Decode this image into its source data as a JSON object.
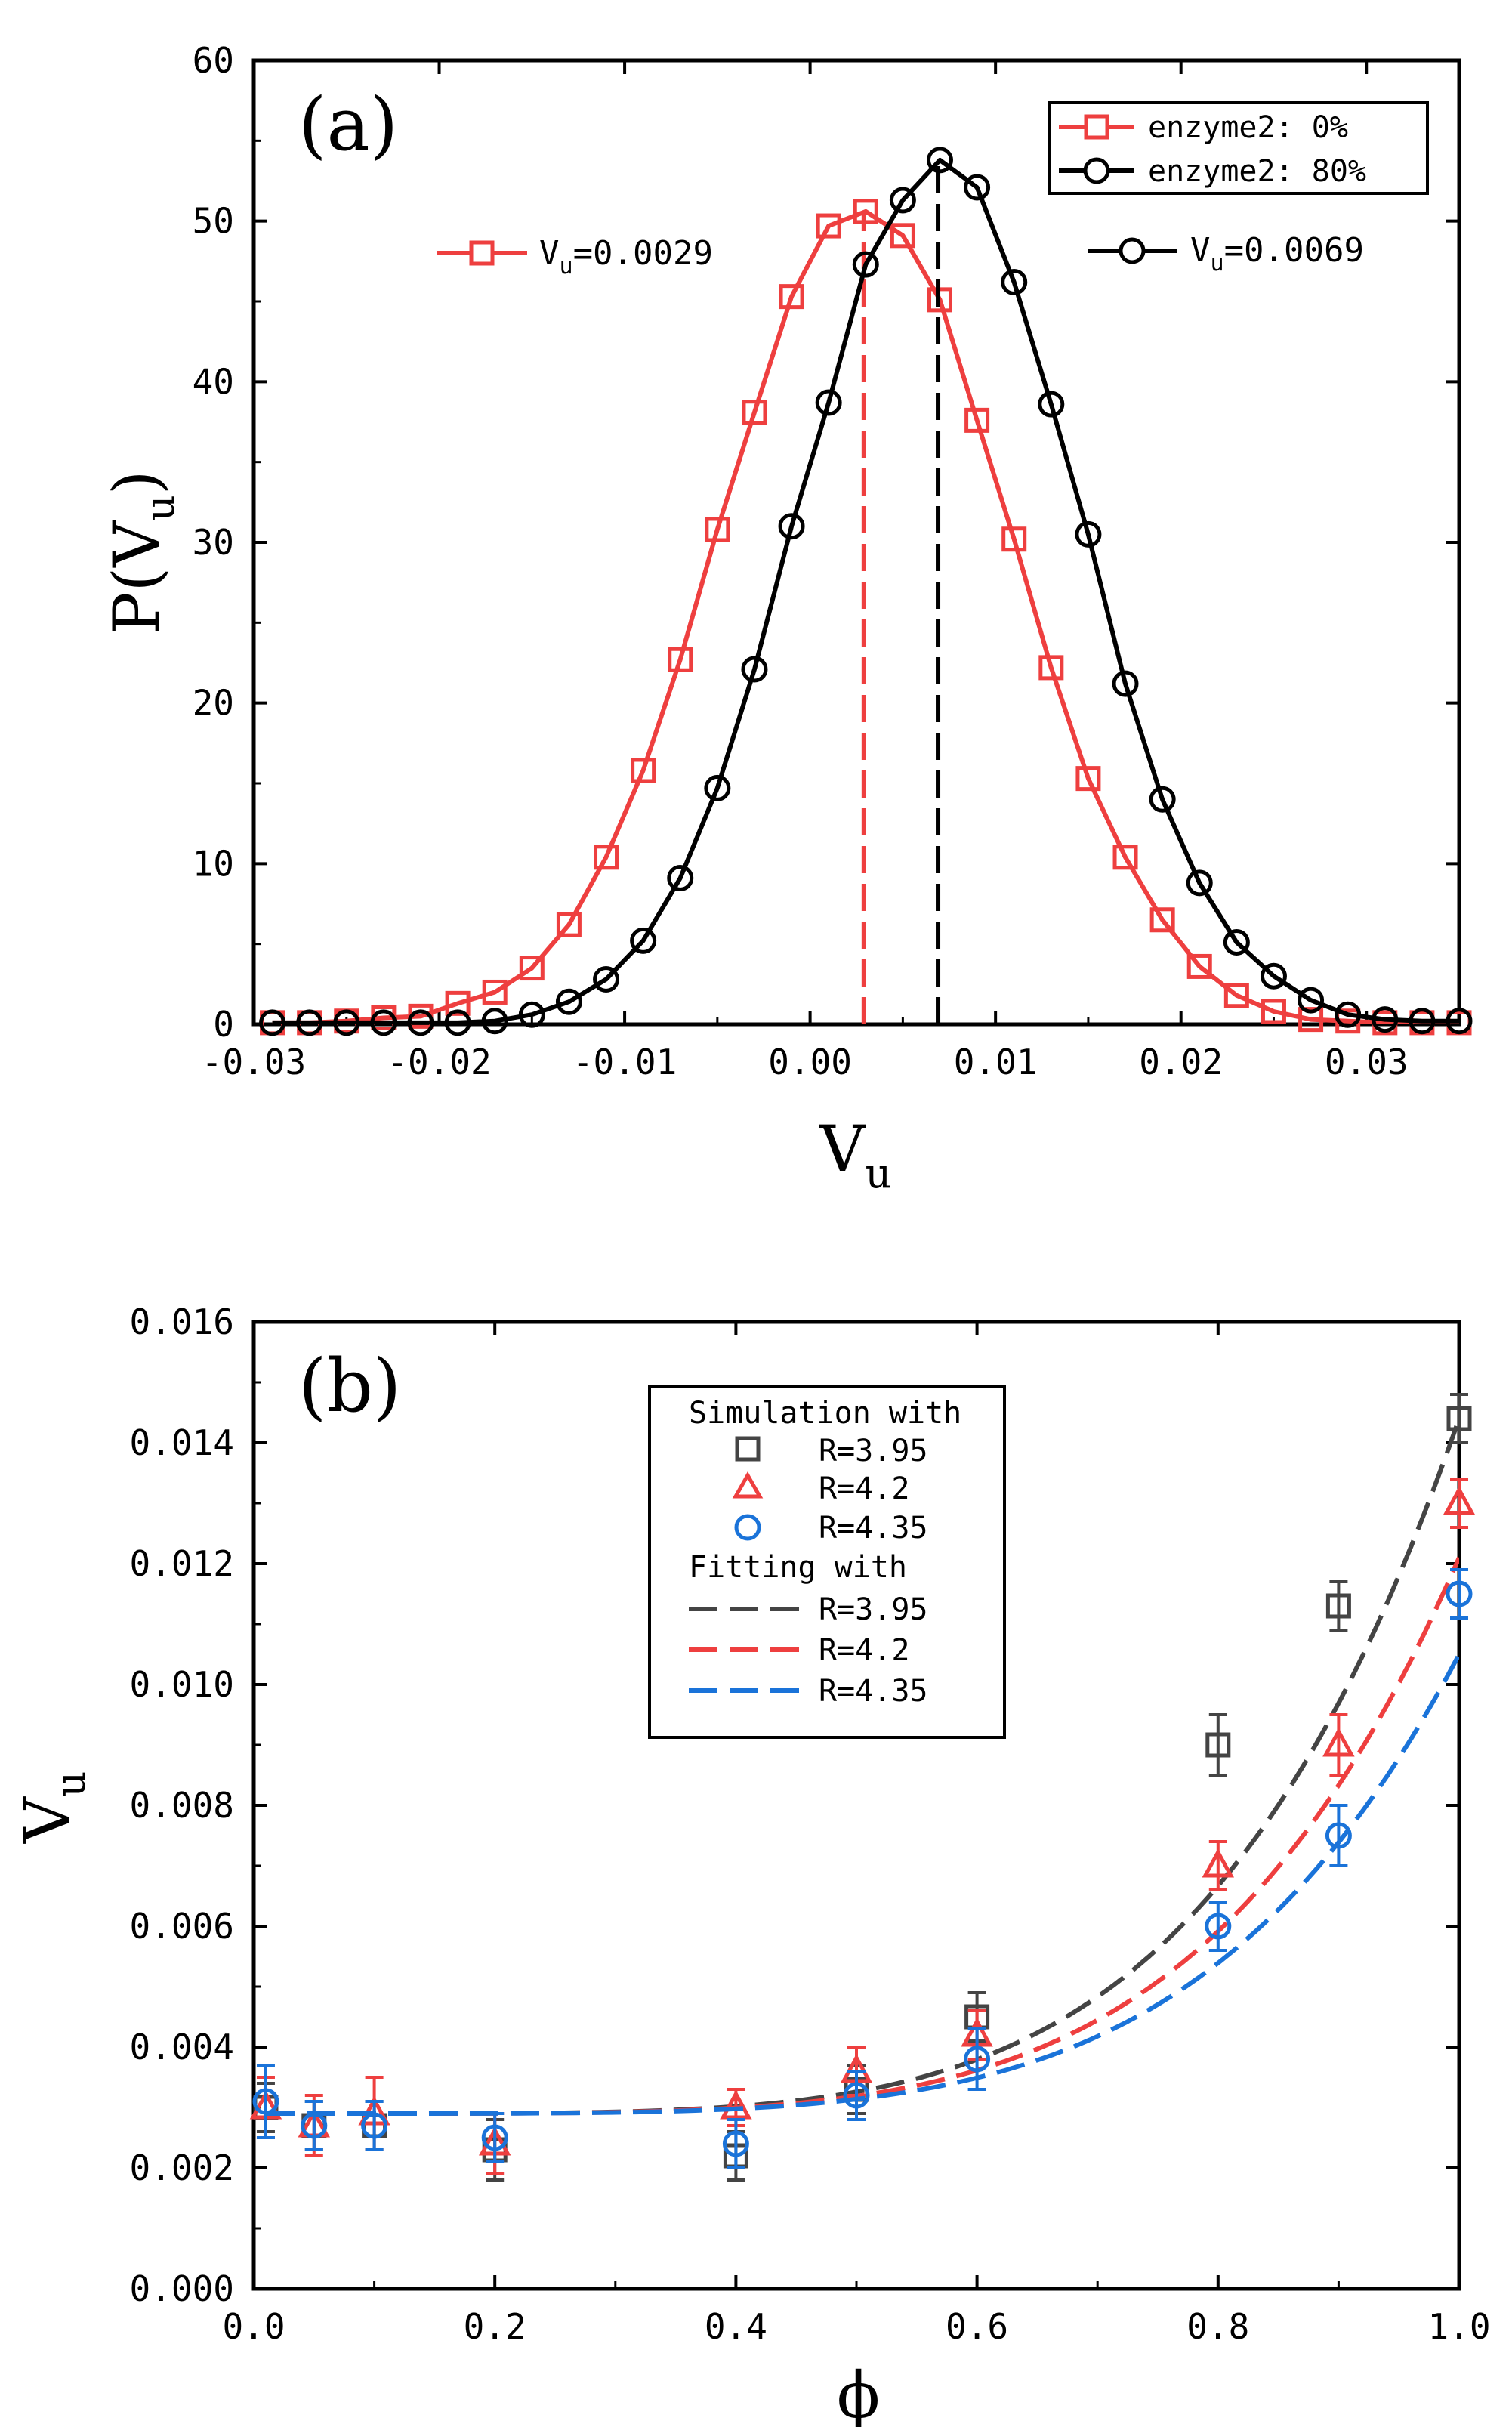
{
  "chart_data": [
    {
      "type": "line",
      "panel_label": "(a)",
      "xlabel": "V",
      "xlabel_sub": "u",
      "ylabel": "P(V",
      "ylabel_sub": "u",
      "ylabel_close": ")",
      "xlim": [
        -0.03,
        0.035
      ],
      "ylim": [
        0,
        60
      ],
      "xticks": [
        -0.03,
        -0.02,
        -0.01,
        0.0,
        0.01,
        0.02,
        0.03
      ],
      "xtick_labels": [
        "-0.03",
        "-0.02",
        "-0.01",
        "0.00",
        "0.01",
        "0.02",
        "0.03"
      ],
      "yticks": [
        0,
        10,
        20,
        30,
        40,
        50,
        60
      ],
      "ytick_labels": [
        "0",
        "10",
        "20",
        "30",
        "40",
        "50",
        "60"
      ],
      "legend": {
        "position": "top-right",
        "entries": [
          {
            "label": "enzyme2: 0%",
            "color": "#ee3f3f",
            "marker": "square"
          },
          {
            "label": "enzyme2: 80%",
            "color": "#000000",
            "marker": "circle"
          }
        ]
      },
      "annotations": [
        {
          "prefix": "V",
          "sub": "u",
          "text": "=0.0029",
          "color": "#ee3f3f",
          "marker": "square"
        },
        {
          "prefix": "V",
          "sub": "u",
          "text": "=0.0069",
          "color": "#000000",
          "marker": "circle"
        }
      ],
      "series": [
        {
          "name": "enzyme2: 0%",
          "color": "#ee3f3f",
          "marker": "square",
          "mean": 0.0029,
          "x": [
            -0.029,
            -0.027,
            -0.025,
            -0.023,
            -0.021,
            -0.019,
            -0.017,
            -0.015,
            -0.013,
            -0.011,
            -0.009,
            -0.007,
            -0.005,
            -0.003,
            -0.001,
            0.001,
            0.003,
            0.005,
            0.007,
            0.009,
            0.011,
            0.013,
            0.015,
            0.017,
            0.019,
            0.021,
            0.023,
            0.025,
            0.027,
            0.029,
            0.031,
            0.033,
            0.035
          ],
          "y": [
            0.1,
            0.1,
            0.2,
            0.4,
            0.5,
            1.3,
            2.0,
            3.5,
            6.2,
            10.4,
            15.8,
            22.7,
            30.8,
            38.1,
            45.3,
            49.7,
            50.6,
            49.1,
            45.1,
            37.6,
            30.2,
            22.2,
            15.3,
            10.4,
            6.5,
            3.6,
            1.8,
            0.8,
            0.3,
            0.2,
            0.1,
            0.1,
            0.1
          ]
        },
        {
          "name": "enzyme2: 80%",
          "color": "#000000",
          "marker": "circle",
          "mean": 0.0069,
          "x": [
            -0.029,
            -0.027,
            -0.025,
            -0.023,
            -0.021,
            -0.019,
            -0.017,
            -0.015,
            -0.013,
            -0.011,
            -0.009,
            -0.007,
            -0.005,
            -0.003,
            -0.001,
            0.001,
            0.003,
            0.005,
            0.007,
            0.009,
            0.011,
            0.013,
            0.015,
            0.017,
            0.019,
            0.021,
            0.023,
            0.025,
            0.027,
            0.029,
            0.031,
            0.033,
            0.035
          ],
          "y": [
            0.1,
            0.1,
            0.1,
            0.1,
            0.1,
            0.1,
            0.2,
            0.6,
            1.4,
            2.8,
            5.2,
            9.1,
            14.7,
            22.1,
            31.0,
            38.7,
            47.3,
            51.3,
            53.8,
            52.1,
            46.2,
            38.6,
            30.5,
            21.2,
            14.0,
            8.8,
            5.1,
            3.0,
            1.5,
            0.6,
            0.3,
            0.2,
            0.2
          ]
        }
      ]
    },
    {
      "type": "scatter",
      "panel_label": "(b)",
      "xlabel": "ϕ",
      "ylabel": "V",
      "ylabel_sub": "u",
      "xlim": [
        0.0,
        1.0
      ],
      "ylim": [
        0.0,
        0.016
      ],
      "xticks": [
        0.0,
        0.2,
        0.4,
        0.6,
        0.8,
        1.0
      ],
      "xtick_labels": [
        "0.0",
        "0.2",
        "0.4",
        "0.6",
        "0.8",
        "1.0"
      ],
      "yticks": [
        0.0,
        0.002,
        0.004,
        0.006,
        0.008,
        0.01,
        0.012,
        0.014,
        0.016
      ],
      "ytick_labels": [
        "0.000",
        "0.002",
        "0.004",
        "0.006",
        "0.008",
        "0.010",
        "0.012",
        "0.014",
        "0.016"
      ],
      "legend": {
        "position": "top-center",
        "sim_title": "Simulation with",
        "fit_title": "Fitting with",
        "sim_entries": [
          {
            "label": "R=3.95",
            "color": "#444444",
            "marker": "square"
          },
          {
            "label": "R=4.2",
            "color": "#ee3f3f",
            "marker": "triangle"
          },
          {
            "label": "R=4.35",
            "color": "#1a73d9",
            "marker": "circle"
          }
        ],
        "fit_entries": [
          {
            "label": "R=3.95",
            "color": "#444444"
          },
          {
            "label": "R=4.2",
            "color": "#ee3f3f"
          },
          {
            "label": "R=4.35",
            "color": "#1a73d9"
          }
        ]
      },
      "series": [
        {
          "name": "R=3.95",
          "color": "#444444",
          "marker": "square",
          "x": [
            0.01,
            0.05,
            0.1,
            0.2,
            0.4,
            0.5,
            0.6,
            0.8,
            0.9,
            1.0
          ],
          "y": [
            0.003,
            0.0027,
            0.0027,
            0.0023,
            0.0022,
            0.0033,
            0.0045,
            0.009,
            0.0113,
            0.0144
          ],
          "err": [
            0.0004,
            0.0004,
            0.0004,
            0.0005,
            0.0004,
            0.0004,
            0.0004,
            0.0005,
            0.0004,
            0.0004
          ],
          "fit": {
            "a": 0.0029,
            "b": 0.0115,
            "n": 5.0
          }
        },
        {
          "name": "R=4.2",
          "color": "#ee3f3f",
          "marker": "triangle",
          "x": [
            0.01,
            0.05,
            0.1,
            0.2,
            0.4,
            0.5,
            0.6,
            0.8,
            0.9,
            1.0
          ],
          "y": [
            0.003,
            0.0027,
            0.0029,
            0.0024,
            0.003,
            0.0036,
            0.0042,
            0.007,
            0.009,
            0.013
          ],
          "err": [
            0.0005,
            0.0005,
            0.0006,
            0.0005,
            0.0003,
            0.0004,
            0.0004,
            0.0004,
            0.0005,
            0.0004
          ],
          "fit": {
            "a": 0.0029,
            "b": 0.0092,
            "n": 5.0
          }
        },
        {
          "name": "R=4.35",
          "color": "#1a73d9",
          "marker": "circle",
          "x": [
            0.01,
            0.05,
            0.1,
            0.2,
            0.4,
            0.5,
            0.6,
            0.8,
            0.9,
            1.0
          ],
          "y": [
            0.0031,
            0.0027,
            0.0027,
            0.0025,
            0.0024,
            0.0032,
            0.0038,
            0.006,
            0.0075,
            0.0115
          ],
          "err": [
            0.0006,
            0.0004,
            0.0004,
            0.0004,
            0.0004,
            0.0004,
            0.0005,
            0.0004,
            0.0005,
            0.0004
          ],
          "fit": {
            "a": 0.0029,
            "b": 0.0076,
            "n": 5.0
          }
        }
      ]
    }
  ]
}
